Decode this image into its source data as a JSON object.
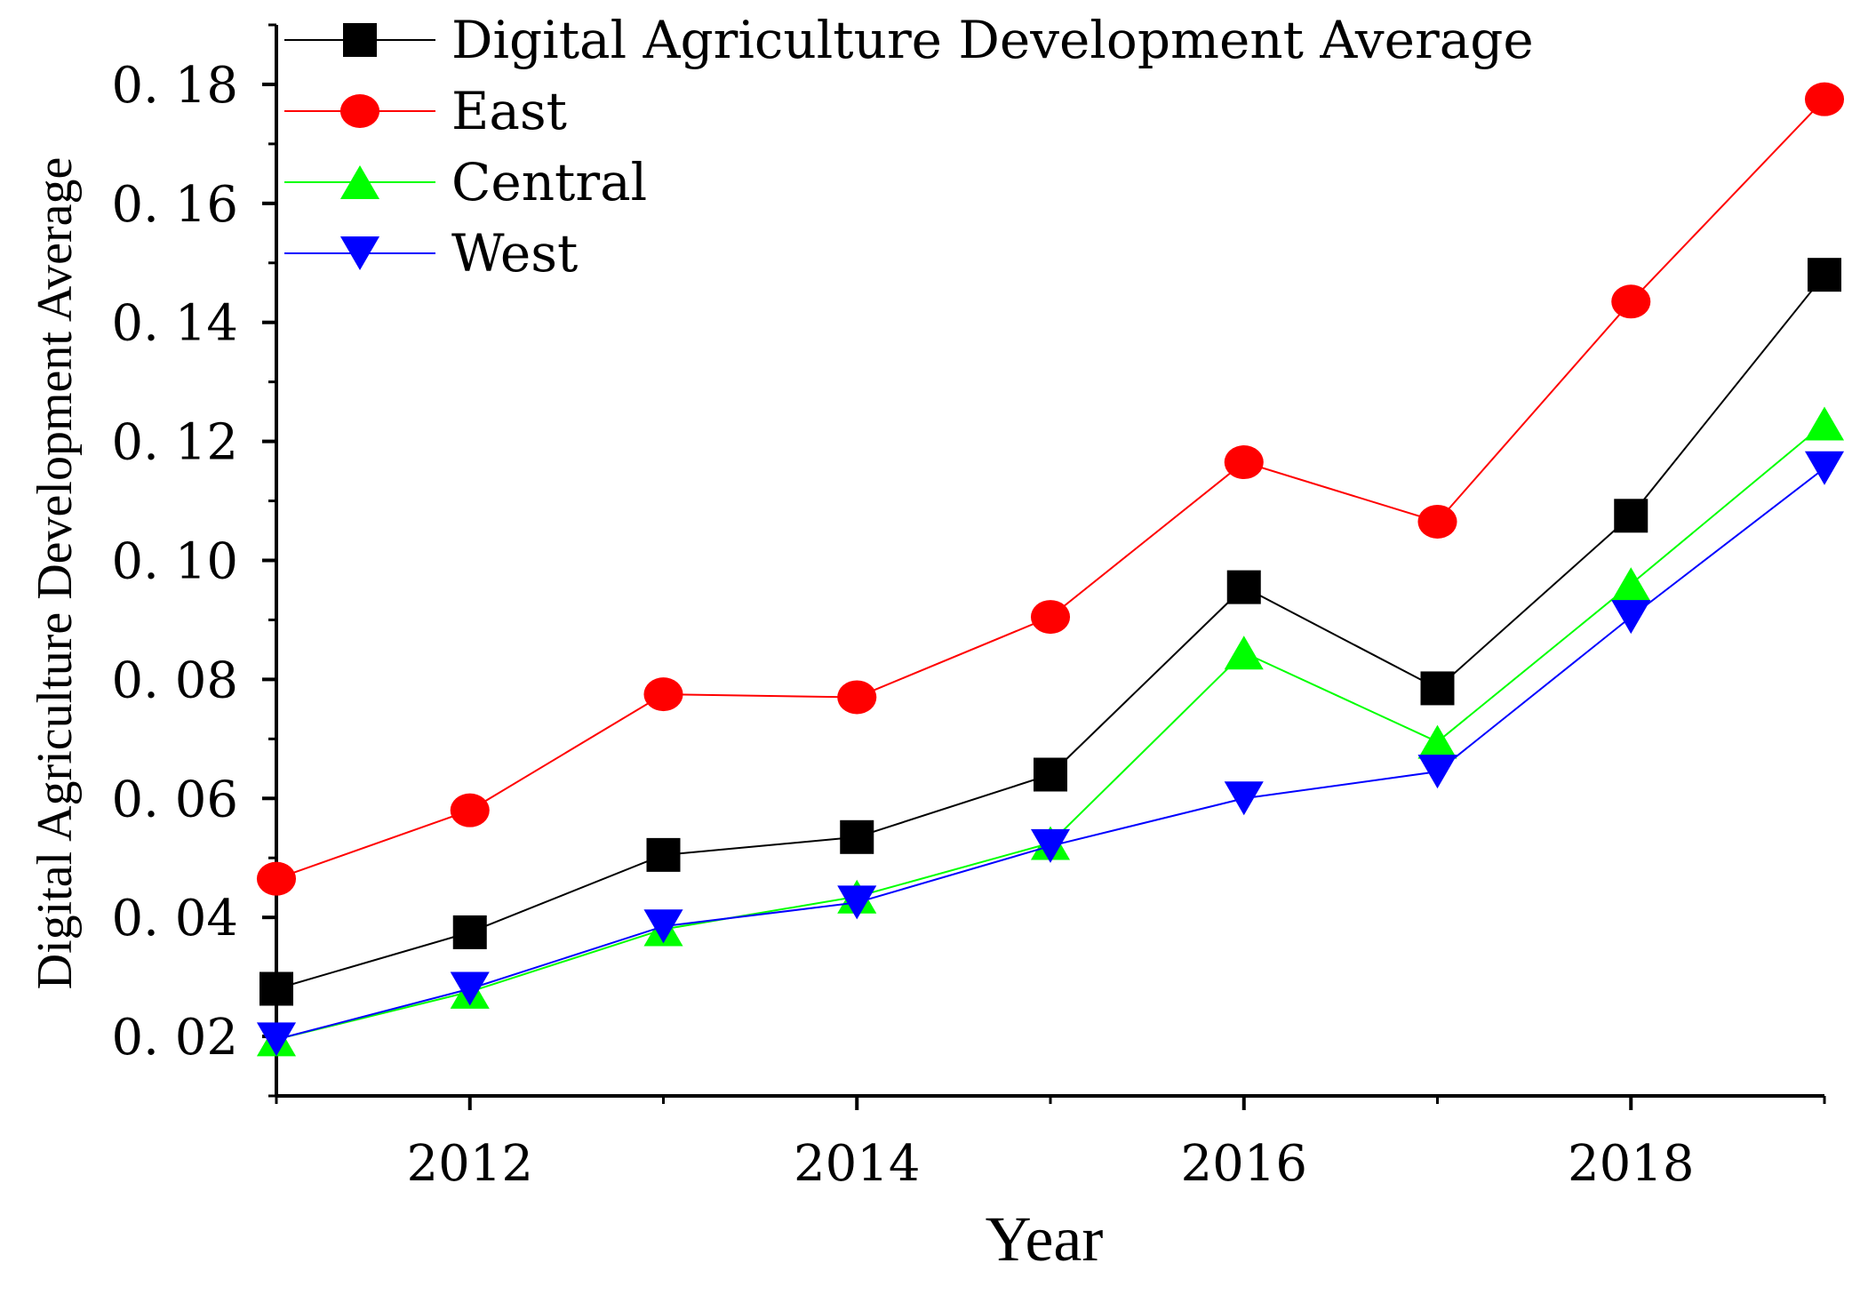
{
  "chart_data": {
    "type": "line",
    "title": "",
    "xlabel": "Year",
    "ylabel": "Digital Agriculture Development Average",
    "x": [
      2011,
      2012,
      2013,
      2014,
      2015,
      2016,
      2017,
      2018,
      2019
    ],
    "xlim": [
      2011,
      2019
    ],
    "ylim": [
      0.01,
      0.19
    ],
    "x_ticks": [
      2012,
      2014,
      2016,
      2018
    ],
    "x_tick_labels": [
      "2012",
      "2014",
      "2016",
      "2018"
    ],
    "y_ticks": [
      0.02,
      0.04,
      0.06,
      0.08,
      0.1,
      0.12,
      0.14,
      0.16,
      0.18
    ],
    "y_tick_labels": [
      "0. 02",
      "0. 04",
      "0. 06",
      "0. 08",
      "0. 10",
      "0. 12",
      "0. 14",
      "0. 16",
      "0. 18"
    ],
    "grid": false,
    "legend_position": "top-left",
    "series": [
      {
        "name": "Digital Agriculture Development Average",
        "color": "#000000",
        "marker": "square",
        "values": [
          0.028,
          0.0375,
          0.0505,
          0.0535,
          0.064,
          0.0955,
          0.0785,
          0.1075,
          0.148
        ]
      },
      {
        "name": "East",
        "color": "#ff0000",
        "marker": "circle",
        "values": [
          0.0465,
          0.058,
          0.0775,
          0.077,
          0.0905,
          0.1165,
          0.1065,
          0.1435,
          0.1775
        ]
      },
      {
        "name": "Central",
        "color": "#00ff00",
        "marker": "triangle-up",
        "values": [
          0.0195,
          0.0275,
          0.038,
          0.0435,
          0.0525,
          0.0845,
          0.0695,
          0.096,
          0.123
        ]
      },
      {
        "name": "West",
        "color": "#0000ff",
        "marker": "triangle-down",
        "values": [
          0.0195,
          0.028,
          0.0385,
          0.0425,
          0.052,
          0.06,
          0.0645,
          0.0905,
          0.1155
        ]
      }
    ]
  }
}
